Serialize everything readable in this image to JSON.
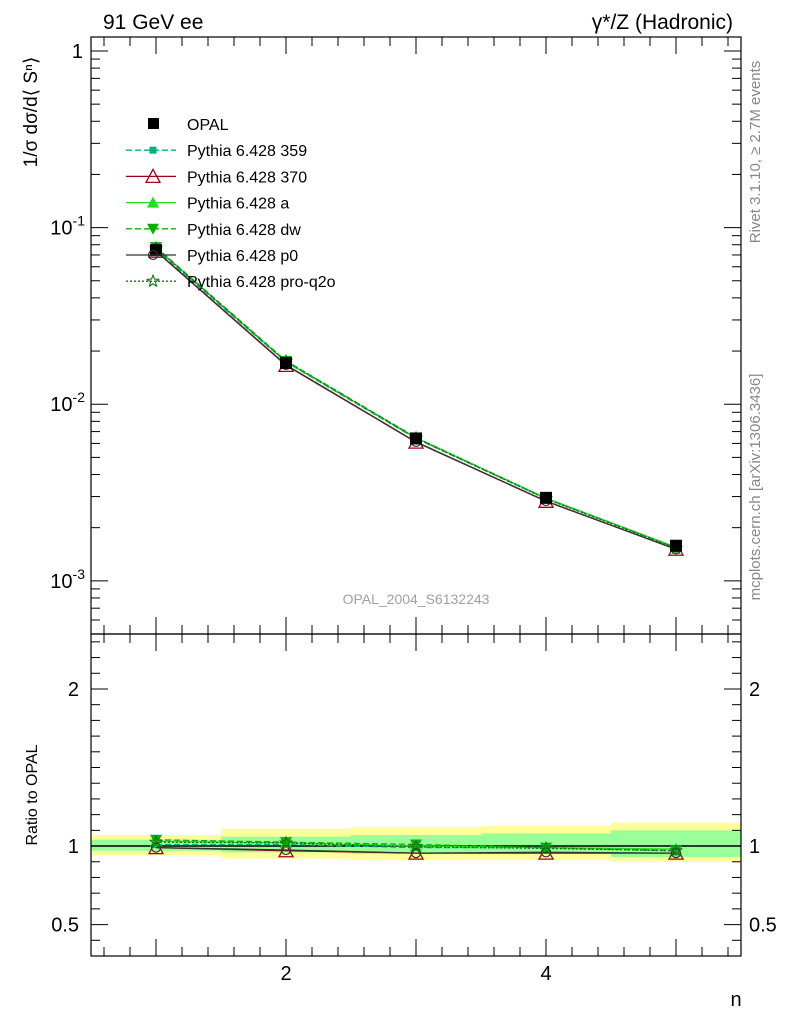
{
  "header": {
    "left": "91 GeV ee",
    "right": "γ*/Z (Hadronic)"
  },
  "side_text": {
    "rivet": "Rivet 3.1.10, ≥ 2.7M events",
    "mcplots": "mcplots.cern.ch [arXiv:1306.3436]"
  },
  "watermark": "OPAL_2004_S6132243",
  "top_ylabel": "1/σ dσ/d⟨ Sⁿ⟩",
  "bottom_ylabel": "Ratio to OPAL",
  "xlabel": "n",
  "chart_data": [
    {
      "type": "line",
      "yscale": "log",
      "ylim": [
        0.0005,
        1.2
      ],
      "xlim": [
        0.5,
        5.5
      ],
      "x": [
        1,
        2,
        3,
        4,
        5
      ],
      "yticks": [
        "1",
        "10⁻¹",
        "10⁻²",
        "10⁻³"
      ],
      "series": [
        {
          "name": "OPAL",
          "values": [
            0.0745,
            0.0171,
            0.0064,
            0.00295,
            0.00158
          ],
          "color": "#000000",
          "marker": "square",
          "dash": "none"
        },
        {
          "name": "Pythia 6.428 359",
          "values": [
            0.0752,
            0.0173,
            0.00638,
            0.00292,
            0.00154
          ],
          "color": "#00b080",
          "marker": "smallsquare",
          "dash": "6,3"
        },
        {
          "name": "Pythia 6.428 370",
          "values": [
            0.0735,
            0.0166,
            0.0061,
            0.00282,
            0.00151
          ],
          "color": "#a00020",
          "marker": "triangle-open",
          "dash": "none"
        },
        {
          "name": "Pythia 6.428 a",
          "values": [
            0.0768,
            0.0174,
            0.00645,
            0.00294,
            0.00155
          ],
          "color": "#22dd22",
          "marker": "triangle",
          "dash": "none"
        },
        {
          "name": "Pythia 6.428 dw",
          "values": [
            0.0775,
            0.0176,
            0.00648,
            0.00293,
            0.00154
          ],
          "color": "#11aa11",
          "marker": "triangle-down",
          "dash": "6,3"
        },
        {
          "name": "Pythia 6.428 p0",
          "values": [
            0.0738,
            0.0167,
            0.00612,
            0.00283,
            0.00151
          ],
          "color": "#333333",
          "marker": "circle-open",
          "dash": "none"
        },
        {
          "name": "Pythia 6.428 pro-q2o",
          "values": [
            0.0765,
            0.0175,
            0.00643,
            0.00291,
            0.00153
          ],
          "color": "#117711",
          "marker": "star",
          "dash": "2,2"
        }
      ]
    },
    {
      "type": "line",
      "ylim": [
        0.3,
        2.35
      ],
      "xlim": [
        0.5,
        5.5
      ],
      "x": [
        1,
        2,
        3,
        4,
        5
      ],
      "yticks": [
        "2",
        "1",
        "0.5"
      ],
      "xticks": [
        "2",
        "4"
      ],
      "bands": {
        "edges": [
          [
            0.5,
            1.5
          ],
          [
            1.5,
            2.5
          ],
          [
            2.5,
            3.5
          ],
          [
            3.5,
            4.5
          ],
          [
            4.5,
            5.5
          ]
        ],
        "yellow": [
          [
            0.94,
            1.07
          ],
          [
            0.92,
            1.11
          ],
          [
            0.91,
            1.12
          ],
          [
            0.91,
            1.13
          ],
          [
            0.9,
            1.15
          ]
        ],
        "green": [
          [
            0.97,
            1.04
          ],
          [
            0.96,
            1.06
          ],
          [
            0.95,
            1.07
          ],
          [
            0.95,
            1.08
          ],
          [
            0.93,
            1.1
          ]
        ]
      },
      "series": [
        {
          "name": "Pythia 6.428 359",
          "values": [
            1.01,
            1.01,
            0.99,
            0.99,
            0.97
          ],
          "color": "#00b080",
          "marker": "smallsquare",
          "dash": "6,3"
        },
        {
          "name": "Pythia 6.428 370",
          "values": [
            0.99,
            0.97,
            0.955,
            0.955,
            0.955
          ],
          "color": "#a00020",
          "marker": "triangle-open",
          "dash": "none"
        },
        {
          "name": "Pythia 6.428 a",
          "values": [
            1.03,
            1.02,
            1.0,
            0.99,
            0.98
          ],
          "color": "#22dd22",
          "marker": "triangle",
          "dash": "none"
        },
        {
          "name": "Pythia 6.428 dw",
          "values": [
            1.04,
            1.025,
            1.01,
            0.99,
            0.97
          ],
          "color": "#11aa11",
          "marker": "triangle-down",
          "dash": "6,3"
        },
        {
          "name": "Pythia 6.428 p0",
          "values": [
            0.99,
            0.975,
            0.955,
            0.96,
            0.955
          ],
          "color": "#333333",
          "marker": "circle-open",
          "dash": "none"
        },
        {
          "name": "Pythia 6.428 pro-q2o",
          "values": [
            1.025,
            1.02,
            0.995,
            0.985,
            0.97
          ],
          "color": "#117711",
          "marker": "star",
          "dash": "2,2"
        }
      ]
    }
  ]
}
